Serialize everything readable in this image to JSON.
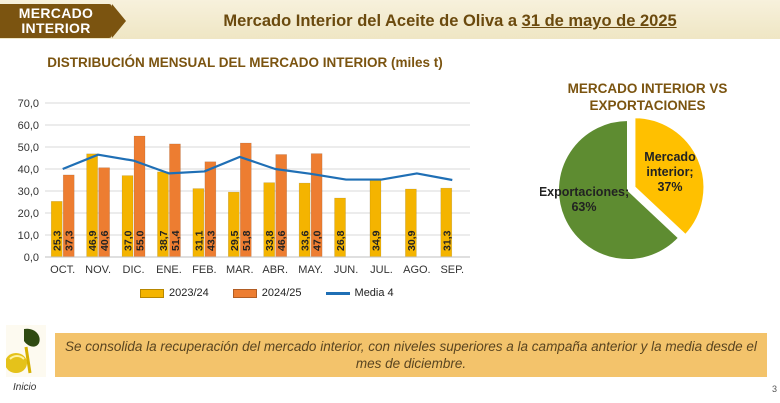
{
  "header": {
    "tag_line1": "MERCADO",
    "tag_line2": "INTERIOR",
    "title_prefix": "Mercado Interior del Aceite de Oliva a ",
    "title_date": "31 de mayo de 2025"
  },
  "colors": {
    "brown": "#7b5410",
    "gold": "#f4b400",
    "orange": "#ed7d31",
    "blue": "#1f6fb5",
    "green": "#5e8c31",
    "note_bg": "#f3c36b"
  },
  "chart_data": [
    {
      "type": "bar",
      "title": "DISTRIBUCIÓN MENSUAL DEL MERCADO INTERIOR (miles t)",
      "categories": [
        "OCT.",
        "NOV.",
        "DIC.",
        "ENE.",
        "FEB.",
        "MAR.",
        "ABR.",
        "MAY.",
        "JUN.",
        "JUL.",
        "AGO.",
        "SEP."
      ],
      "ylim": [
        0,
        70
      ],
      "yticks": [
        "0,0",
        "10,0",
        "20,0",
        "30,0",
        "40,0",
        "50,0",
        "60,0",
        "70,0"
      ],
      "grid": true,
      "legend": "bottom",
      "series": [
        {
          "name": "2023/24",
          "type": "bar",
          "color": "#f4b400",
          "values": [
            25.3,
            46.9,
            37.0,
            38.7,
            31.1,
            29.5,
            33.8,
            33.6,
            26.8,
            34.9,
            30.9,
            31.3
          ],
          "labels": [
            "25,3",
            "46,9",
            "37,0",
            "38,7",
            "31,1",
            "29,5",
            "33,8",
            "33,6",
            "26,8",
            "34,9",
            "30,9",
            "31,3"
          ]
        },
        {
          "name": "2024/25",
          "type": "bar",
          "color": "#ed7d31",
          "values": [
            37.3,
            40.6,
            55.0,
            51.4,
            43.3,
            51.8,
            46.6,
            47.0,
            null,
            null,
            null,
            null
          ],
          "labels": [
            "37,3",
            "40,6",
            "55,0",
            "51,4",
            "43,3",
            "51,8",
            "46,6",
            "47,0",
            "",
            "",
            "",
            ""
          ]
        },
        {
          "name": "Media 4",
          "type": "line",
          "color": "#1f6fb5",
          "values": [
            40.0,
            46.5,
            43.8,
            38.0,
            38.9,
            45.5,
            40.0,
            37.8,
            35.2,
            35.2,
            38.0,
            35.0
          ]
        }
      ]
    },
    {
      "type": "pie",
      "title": "MERCADO INTERIOR VS EXPORTACIONES",
      "slices": [
        {
          "name": "Mercado interior",
          "value": 37,
          "label_line1": "Mercado",
          "label_line2": "interior;",
          "label_line3": "37%",
          "color": "#ffc000"
        },
        {
          "name": "Exportaciones",
          "value": 63,
          "label_line1": "Exportaciones;",
          "label_line2": "63%",
          "color": "#5e8c31"
        }
      ]
    }
  ],
  "note": "Se consolida la recuperación del mercado interior, con niveles superiores a la campaña anterior y la media desde el mes de diciembre.",
  "footer": {
    "inicio": "Inicio",
    "page_number": "3"
  }
}
